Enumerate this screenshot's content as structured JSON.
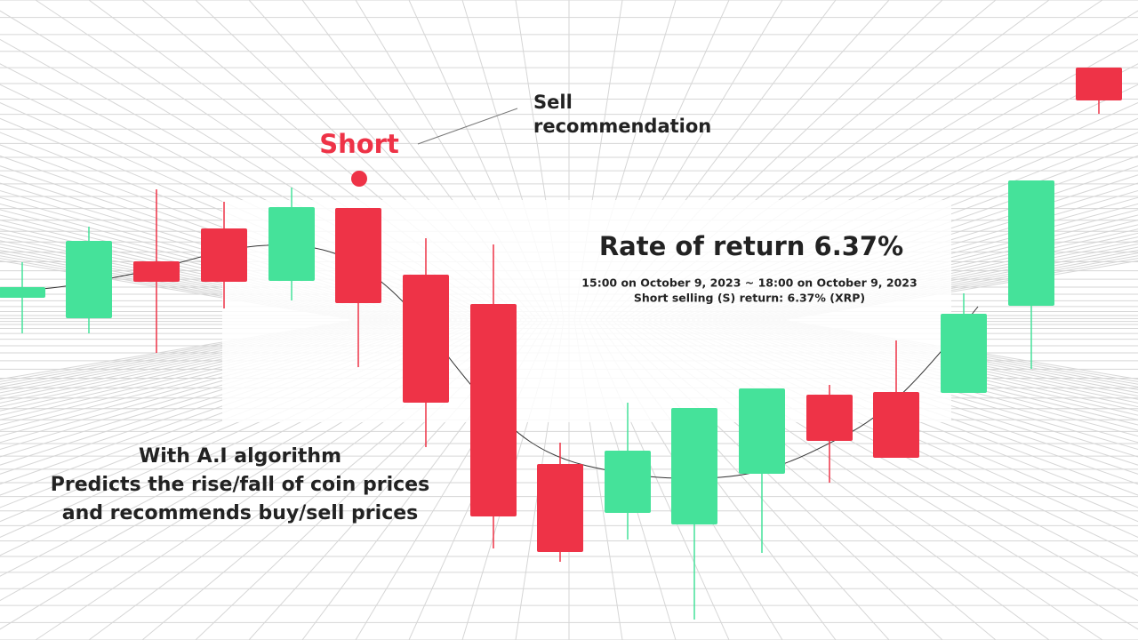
{
  "callout": {
    "lines": [
      "Sell",
      "recommendation"
    ]
  },
  "signal": "Short",
  "result": {
    "title": "Rate of return 6.37%",
    "period": "15:00 on October 9, 2023 ~ 18:00 on October 9, 2023",
    "detail": "Short selling (S) return: 6.37% (XRP)"
  },
  "tagline": [
    "With A.I algorithm",
    "Predicts the rise/fall of coin prices",
    "and recommends buy/sell prices"
  ]
}
